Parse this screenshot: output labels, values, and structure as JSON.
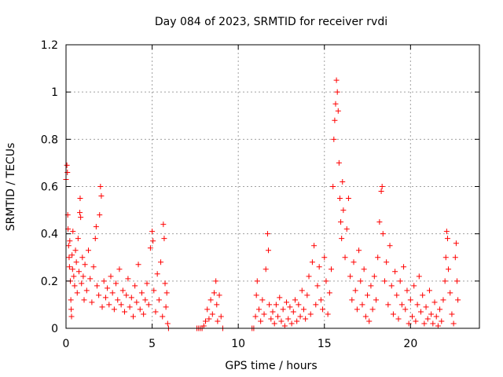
{
  "chart_data": {
    "type": "scatter",
    "title": "Day 084 of 2023, SRMTID for receiver rvdi",
    "xlabel": "GPS time / hours",
    "ylabel": "SRMTID / TECUs",
    "xlim": [
      0,
      24
    ],
    "ylim": [
      0,
      1.2
    ],
    "xticks": [
      0,
      5,
      10,
      15,
      20
    ],
    "xtick_labels": [
      "0",
      "5",
      "10",
      "15",
      "20"
    ],
    "yticks": [
      0,
      0.2,
      0.4,
      0.6,
      0.8,
      1.0,
      1.2
    ],
    "ytick_labels": [
      "0",
      "0.2",
      "0.4",
      "0.6",
      "0.8",
      "1",
      "1.2"
    ],
    "grid": true,
    "marker": "+",
    "color": "#ff0000",
    "series": [
      {
        "name": "SRMTID",
        "points": [
          [
            0.0,
            0.63
          ],
          [
            0.05,
            0.69
          ],
          [
            0.08,
            0.66
          ],
          [
            0.1,
            0.48
          ],
          [
            0.12,
            0.42
          ],
          [
            0.15,
            0.35
          ],
          [
            0.18,
            0.3
          ],
          [
            0.2,
            0.26
          ],
          [
            0.22,
            0.37
          ],
          [
            0.25,
            0.2
          ],
          [
            0.28,
            0.12
          ],
          [
            0.3,
            0.08
          ],
          [
            0.32,
            0.05
          ],
          [
            0.35,
            0.31
          ],
          [
            0.38,
            0.25
          ],
          [
            0.4,
            0.41
          ],
          [
            0.45,
            0.22
          ],
          [
            0.5,
            0.18
          ],
          [
            0.55,
            0.33
          ],
          [
            0.6,
            0.28
          ],
          [
            0.65,
            0.15
          ],
          [
            0.7,
            0.38
          ],
          [
            0.75,
            0.24
          ],
          [
            0.8,
            0.49
          ],
          [
            0.82,
            0.55
          ],
          [
            0.85,
            0.47
          ],
          [
            0.9,
            0.19
          ],
          [
            0.95,
            0.3
          ],
          [
            1.0,
            0.22
          ],
          [
            1.05,
            0.12
          ],
          [
            1.1,
            0.27
          ],
          [
            1.2,
            0.16
          ],
          [
            1.3,
            0.33
          ],
          [
            1.4,
            0.21
          ],
          [
            1.5,
            0.11
          ],
          [
            1.6,
            0.26
          ],
          [
            1.7,
            0.38
          ],
          [
            1.75,
            0.43
          ],
          [
            1.8,
            0.18
          ],
          [
            1.9,
            0.14
          ],
          [
            1.95,
            0.48
          ],
          [
            2.0,
            0.6
          ],
          [
            2.05,
            0.56
          ],
          [
            2.1,
            0.09
          ],
          [
            2.2,
            0.2
          ],
          [
            2.3,
            0.13
          ],
          [
            2.4,
            0.17
          ],
          [
            2.5,
            0.1
          ],
          [
            2.6,
            0.22
          ],
          [
            2.7,
            0.15
          ],
          [
            2.8,
            0.08
          ],
          [
            2.9,
            0.19
          ],
          [
            3.0,
            0.12
          ],
          [
            3.1,
            0.25
          ],
          [
            3.2,
            0.1
          ],
          [
            3.3,
            0.16
          ],
          [
            3.4,
            0.07
          ],
          [
            3.5,
            0.14
          ],
          [
            3.6,
            0.21
          ],
          [
            3.7,
            0.09
          ],
          [
            3.8,
            0.13
          ],
          [
            3.9,
            0.05
          ],
          [
            4.0,
            0.18
          ],
          [
            4.1,
            0.11
          ],
          [
            4.2,
            0.27
          ],
          [
            4.3,
            0.08
          ],
          [
            4.4,
            0.15
          ],
          [
            4.5,
            0.06
          ],
          [
            4.6,
            0.12
          ],
          [
            4.7,
            0.19
          ],
          [
            4.8,
            0.1
          ],
          [
            4.9,
            0.34
          ],
          [
            5.0,
            0.41
          ],
          [
            5.05,
            0.37
          ],
          [
            5.1,
            0.16
          ],
          [
            5.2,
            0.07
          ],
          [
            5.3,
            0.23
          ],
          [
            5.4,
            0.12
          ],
          [
            5.5,
            0.28
          ],
          [
            5.6,
            0.05
          ],
          [
            5.65,
            0.44
          ],
          [
            5.7,
            0.38
          ],
          [
            5.75,
            0.19
          ],
          [
            5.8,
            0.09
          ],
          [
            5.85,
            0.15
          ],
          [
            5.9,
            0.02
          ],
          [
            5.95,
            0.0
          ],
          [
            7.6,
            0.0
          ],
          [
            7.7,
            0.0
          ],
          [
            7.8,
            0.0
          ],
          [
            7.9,
            0.0
          ],
          [
            8.0,
            0.01
          ],
          [
            8.1,
            0.03
          ],
          [
            8.2,
            0.08
          ],
          [
            8.3,
            0.04
          ],
          [
            8.4,
            0.12
          ],
          [
            8.5,
            0.06
          ],
          [
            8.6,
            0.15
          ],
          [
            8.7,
            0.2
          ],
          [
            8.75,
            0.1
          ],
          [
            8.8,
            0.03
          ],
          [
            8.9,
            0.14
          ],
          [
            9.0,
            0.05
          ],
          [
            9.1,
            0.0
          ],
          [
            10.8,
            0.0
          ],
          [
            10.9,
            0.0
          ],
          [
            11.0,
            0.05
          ],
          [
            11.05,
            0.14
          ],
          [
            11.1,
            0.2
          ],
          [
            11.2,
            0.08
          ],
          [
            11.3,
            0.03
          ],
          [
            11.4,
            0.12
          ],
          [
            11.5,
            0.06
          ],
          [
            11.6,
            0.25
          ],
          [
            11.7,
            0.4
          ],
          [
            11.75,
            0.33
          ],
          [
            11.8,
            0.1
          ],
          [
            11.9,
            0.04
          ],
          [
            12.0,
            0.07
          ],
          [
            12.1,
            0.02
          ],
          [
            12.2,
            0.1
          ],
          [
            12.3,
            0.05
          ],
          [
            12.4,
            0.13
          ],
          [
            12.5,
            0.03
          ],
          [
            12.6,
            0.08
          ],
          [
            12.7,
            0.01
          ],
          [
            12.8,
            0.11
          ],
          [
            12.9,
            0.04
          ],
          [
            13.0,
            0.09
          ],
          [
            13.1,
            0.02
          ],
          [
            13.2,
            0.07
          ],
          [
            13.3,
            0.12
          ],
          [
            13.4,
            0.03
          ],
          [
            13.5,
            0.1
          ],
          [
            13.6,
            0.05
          ],
          [
            13.7,
            0.16
          ],
          [
            13.8,
            0.08
          ],
          [
            13.9,
            0.04
          ],
          [
            14.0,
            0.14
          ],
          [
            14.1,
            0.22
          ],
          [
            14.2,
            0.06
          ],
          [
            14.3,
            0.28
          ],
          [
            14.4,
            0.35
          ],
          [
            14.5,
            0.1
          ],
          [
            14.6,
            0.18
          ],
          [
            14.7,
            0.26
          ],
          [
            14.8,
            0.12
          ],
          [
            14.9,
            0.08
          ],
          [
            15.0,
            0.3
          ],
          [
            15.1,
            0.2
          ],
          [
            15.2,
            0.06
          ],
          [
            15.3,
            0.15
          ],
          [
            15.4,
            0.25
          ],
          [
            15.5,
            0.6
          ],
          [
            15.55,
            0.8
          ],
          [
            15.6,
            0.88
          ],
          [
            15.65,
            0.95
          ],
          [
            15.7,
            1.05
          ],
          [
            15.75,
            1.0
          ],
          [
            15.8,
            0.92
          ],
          [
            15.85,
            0.7
          ],
          [
            15.9,
            0.55
          ],
          [
            15.95,
            0.45
          ],
          [
            16.0,
            0.38
          ],
          [
            16.05,
            0.62
          ],
          [
            16.1,
            0.5
          ],
          [
            16.2,
            0.3
          ],
          [
            16.3,
            0.42
          ],
          [
            16.4,
            0.55
          ],
          [
            16.5,
            0.22
          ],
          [
            16.6,
            0.12
          ],
          [
            16.7,
            0.28
          ],
          [
            16.8,
            0.16
          ],
          [
            16.9,
            0.08
          ],
          [
            17.0,
            0.33
          ],
          [
            17.1,
            0.2
          ],
          [
            17.2,
            0.1
          ],
          [
            17.3,
            0.25
          ],
          [
            17.4,
            0.05
          ],
          [
            17.5,
            0.14
          ],
          [
            17.6,
            0.03
          ],
          [
            17.7,
            0.18
          ],
          [
            17.8,
            0.08
          ],
          [
            17.9,
            0.22
          ],
          [
            18.0,
            0.12
          ],
          [
            18.1,
            0.3
          ],
          [
            18.2,
            0.45
          ],
          [
            18.3,
            0.58
          ],
          [
            18.35,
            0.6
          ],
          [
            18.4,
            0.4
          ],
          [
            18.5,
            0.2
          ],
          [
            18.6,
            0.28
          ],
          [
            18.7,
            0.1
          ],
          [
            18.8,
            0.35
          ],
          [
            18.9,
            0.18
          ],
          [
            19.0,
            0.06
          ],
          [
            19.1,
            0.24
          ],
          [
            19.2,
            0.14
          ],
          [
            19.3,
            0.04
          ],
          [
            19.4,
            0.2
          ],
          [
            19.5,
            0.1
          ],
          [
            19.6,
            0.26
          ],
          [
            19.7,
            0.08
          ],
          [
            19.8,
            0.16
          ],
          [
            19.9,
            0.02
          ],
          [
            20.0,
            0.12
          ],
          [
            20.1,
            0.05
          ],
          [
            20.2,
            0.18
          ],
          [
            20.3,
            0.03
          ],
          [
            20.4,
            0.1
          ],
          [
            20.5,
            0.22
          ],
          [
            20.6,
            0.07
          ],
          [
            20.7,
            0.14
          ],
          [
            20.8,
            0.02
          ],
          [
            20.9,
            0.09
          ],
          [
            21.0,
            0.04
          ],
          [
            21.1,
            0.16
          ],
          [
            21.2,
            0.06
          ],
          [
            21.3,
            0.02
          ],
          [
            21.4,
            0.11
          ],
          [
            21.5,
            0.05
          ],
          [
            21.6,
            0.01
          ],
          [
            21.7,
            0.08
          ],
          [
            21.8,
            0.03
          ],
          [
            21.9,
            0.12
          ],
          [
            22.0,
            0.2
          ],
          [
            22.05,
            0.3
          ],
          [
            22.1,
            0.41
          ],
          [
            22.15,
            0.38
          ],
          [
            22.2,
            0.25
          ],
          [
            22.3,
            0.15
          ],
          [
            22.4,
            0.06
          ],
          [
            22.5,
            0.02
          ],
          [
            22.6,
            0.3
          ],
          [
            22.65,
            0.36
          ],
          [
            22.7,
            0.2
          ],
          [
            22.75,
            0.12
          ]
        ]
      }
    ]
  }
}
